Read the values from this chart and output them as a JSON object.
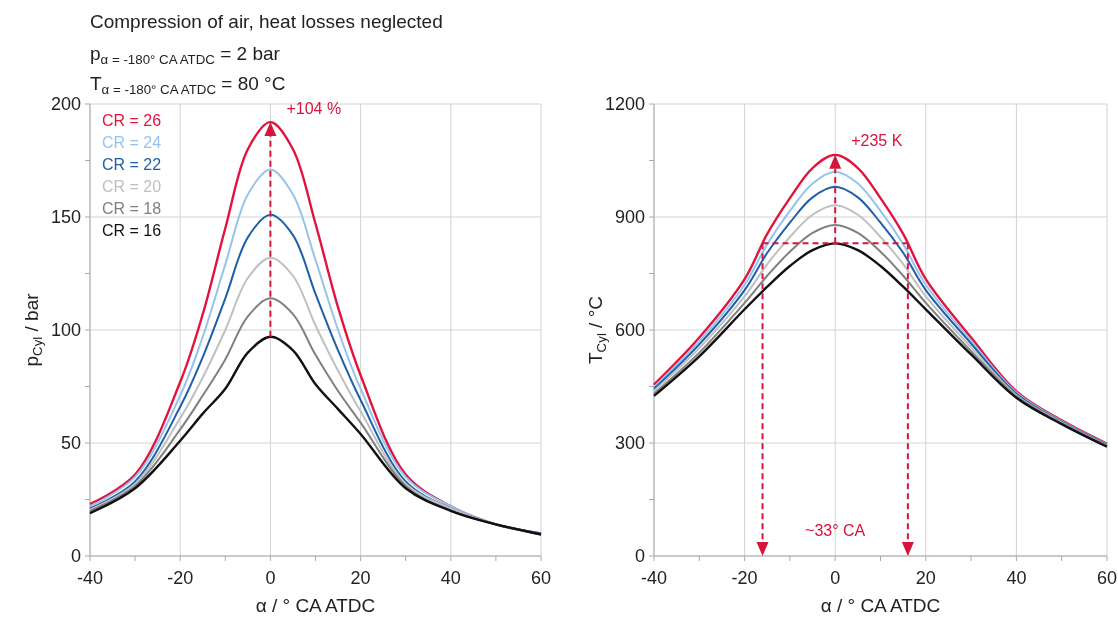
{
  "chart_data": [
    {
      "type": "line",
      "title": "Compression of air, heat losses neglected",
      "xlabel": "α / ° CA ATDC",
      "ylabel": "p$_{Cyl}$ / bar",
      "subtitle": "p$_{α = -180° CA ATDC}$ = 2 bar\nT$_{α = -180° CA ATDC}$ = 80 °C",
      "annotations": [
        "+104 %"
      ],
      "x": [
        -40,
        -30,
        -20,
        -15,
        -10,
        -5,
        0,
        5,
        10,
        15,
        20,
        30,
        40,
        50,
        60
      ],
      "series": [
        {
          "name": "CR = 26",
          "color": "#e0143c",
          "values": [
            23,
            36,
            77,
            107,
            145,
            180,
            192,
            180,
            147,
            110,
            80,
            36,
            22,
            14,
            10
          ]
        },
        {
          "name": "CR = 24",
          "color": "#94c4ee",
          "values": [
            22,
            35,
            71,
            97,
            129,
            160,
            171,
            160,
            131,
            100,
            74,
            35,
            22,
            14,
            10
          ]
        },
        {
          "name": "CR = 22",
          "color": "#1f5fa8",
          "values": [
            21,
            33,
            66,
            88,
            114,
            141,
            151,
            142,
            116,
            91,
            69,
            33,
            21,
            14,
            10
          ]
        },
        {
          "name": "CR = 20",
          "color": "#c0c0c0",
          "values": [
            20.5,
            32,
            61,
            79,
            100,
            123,
            132,
            124,
            102,
            82,
            64,
            32,
            21,
            14,
            9.5
          ]
        },
        {
          "name": "CR = 18",
          "color": "#808080",
          "values": [
            20,
            31,
            56,
            71,
            87,
            106,
            114,
            107,
            89,
            73,
            59,
            31,
            20,
            14,
            9.5
          ]
        },
        {
          "name": "CR = 16",
          "color": "#111111",
          "values": [
            19,
            30,
            51,
            63,
            74,
            90,
            97,
            91,
            76,
            65,
            54,
            30,
            20,
            14,
            9.5
          ]
        }
      ],
      "xlim": [
        -40,
        60
      ],
      "xticks": [
        -40,
        {
          "value": -30,
          "label": null
        },
        -20,
        {
          "value": -10,
          "label": null
        },
        0,
        {
          "value": 10,
          "label": null
        },
        20,
        {
          "value": 30,
          "label": null
        },
        40,
        {
          "value": 50,
          "label": null
        },
        60
      ],
      "ylim": [
        0,
        200
      ],
      "yticks": [
        0,
        {
          "value": 25,
          "label": null
        },
        50,
        {
          "value": 75,
          "label": null
        },
        100,
        {
          "value": 125,
          "label": null
        },
        150,
        {
          "value": 175,
          "label": null
        },
        200
      ],
      "grid": true,
      "legend": "top left"
    },
    {
      "type": "line",
      "xlabel": "α / ° CA ATDC",
      "ylabel": "T$_{Cyl}$ / °C",
      "annotations": [
        "+235 K",
        "~33° CA"
      ],
      "x": [
        -40,
        -30,
        -20,
        -15,
        -10,
        -5,
        0,
        5,
        10,
        15,
        20,
        30,
        40,
        50,
        60
      ],
      "series": [
        {
          "color": "#e0143c",
          "values": [
            455,
            580,
            735,
            855,
            950,
            1030,
            1065,
            1030,
            950,
            855,
            735,
            580,
            437,
            360,
            298
          ]
        },
        {
          "color": "#94c4ee",
          "values": [
            449,
            570,
            720,
            828,
            916,
            989,
            1020,
            989,
            916,
            828,
            720,
            571,
            434,
            358,
            296
          ]
        },
        {
          "color": "#1f5fa8",
          "values": [
            444,
            562,
            706,
            805,
            885,
            952,
            980,
            952,
            885,
            805,
            706,
            564,
            431,
            356,
            295
          ]
        },
        {
          "color": "#c0c0c0",
          "values": [
            438,
            552,
            689,
            775,
            847,
            906,
            931,
            906,
            847,
            775,
            689,
            554,
            427,
            354,
            293
          ]
        },
        {
          "color": "#808080",
          "values": [
            431,
            540,
            672,
            744,
            808,
            858,
            879,
            858,
            808,
            744,
            672,
            544,
            424,
            352,
            292
          ]
        },
        {
          "color": "#111111",
          "values": [
            425,
            530,
            655,
            715,
            770,
            812,
            830,
            812,
            770,
            715,
            655,
            535,
            420,
            350,
            290
          ]
        }
      ],
      "xlim": [
        -40,
        60
      ],
      "xticks": [
        -40,
        {
          "value": -30,
          "label": null
        },
        -20,
        {
          "value": -10,
          "label": null
        },
        0,
        {
          "value": 10,
          "label": null
        },
        20,
        {
          "value": 30,
          "label": null
        },
        40,
        {
          "value": 50,
          "label": null
        },
        60
      ],
      "ylim": [
        0,
        1200
      ],
      "yticks": [
        0,
        {
          "value": 150,
          "label": null
        },
        300,
        {
          "value": 450,
          "label": null
        },
        600,
        {
          "value": 750,
          "label": null
        },
        900,
        {
          "value": 1050,
          "label": null
        },
        1200
      ],
      "grid": true
    }
  ]
}
